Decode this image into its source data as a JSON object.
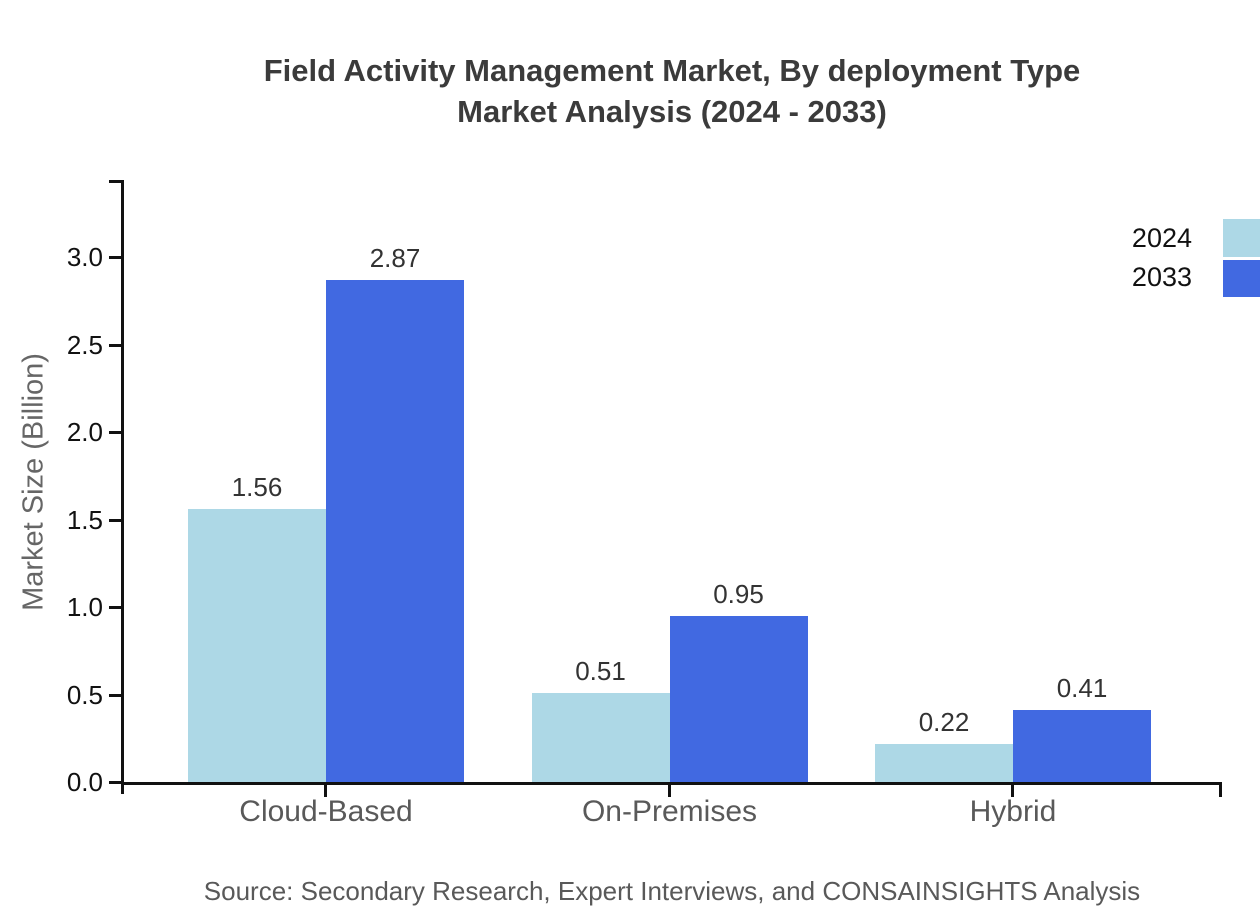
{
  "page": {
    "background": "#ffffff"
  },
  "chart_data": {
    "type": "bar",
    "title": "Field Activity Management Market, By deployment Type",
    "subtitle": "Market Analysis (2024 - 2033)",
    "ylabel": "Market Size (Billion)",
    "xlabel": "",
    "categories": [
      "Cloud-Based",
      "On-Premises",
      "Hybrid"
    ],
    "series": [
      {
        "name": "2024",
        "color": "#ADD8E6",
        "values": [
          1.56,
          0.51,
          0.22
        ]
      },
      {
        "name": "2033",
        "color": "#4169E1",
        "values": [
          2.87,
          0.95,
          0.41
        ]
      }
    ],
    "y_ticks": [
      0.0,
      0.5,
      1.0,
      1.5,
      2.0,
      2.5,
      3.0
    ],
    "ylim": [
      0,
      3.45
    ],
    "grid": false,
    "value_labels": true,
    "legend_position": "top-right",
    "source": "Source: Secondary Research, Expert Interviews, and CONSAINSIGHTS Analysis"
  },
  "colors": {
    "axis": "#111111",
    "title_text": "#3b3b3b",
    "tick_text": "#111111",
    "category_text": "#595959",
    "value_text": "#333333",
    "source_text": "#595959"
  }
}
